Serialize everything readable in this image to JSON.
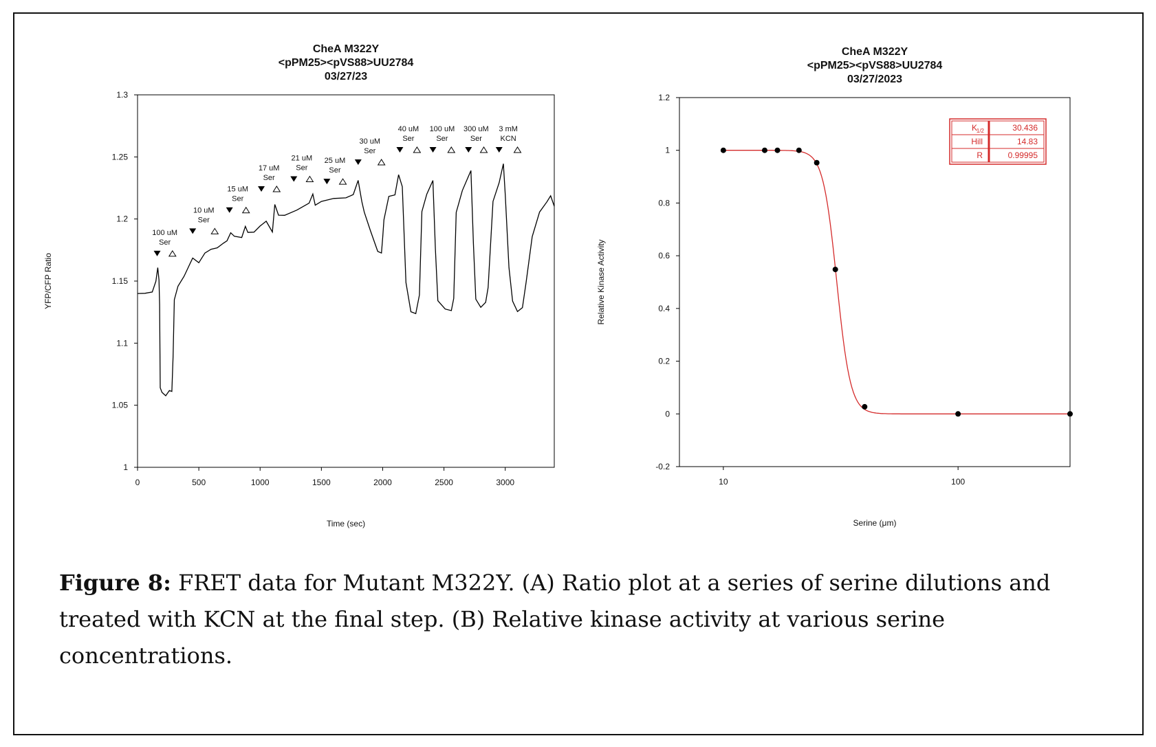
{
  "caption": {
    "label": "Figure 8:",
    "text": " FRET data for Mutant M322Y. (A) Ratio plot at a series of serine dilutions and treated with KCN at the final step. (B) Relative kinase activity at various serine concentrations."
  },
  "chart_data": [
    {
      "type": "line",
      "title": [
        "CheA M322Y",
        "<pPM25><pVS88>UU2784",
        "03/27/23"
      ],
      "xlabel": "Time (sec)",
      "ylabel": "YFP/CFP Ratio",
      "xlim": [
        0,
        3400
      ],
      "ylim": [
        1,
        1.3
      ],
      "xticks": [
        "0",
        "500",
        "1000",
        "1500",
        "2000",
        "2500",
        "3000"
      ],
      "yticks": [
        "1",
        "1.05",
        "1.1",
        "1.15",
        "1.2",
        "1.25",
        "1.3"
      ],
      "color": "#000000",
      "annotations": [
        {
          "label": [
            "100 uM",
            "Ser"
          ],
          "add": 160,
          "remove": 285
        },
        {
          "label": [
            "10 uM",
            "Ser"
          ],
          "add": 450,
          "remove": 630
        },
        {
          "label": [
            "15 uM",
            "Ser"
          ],
          "add": 750,
          "remove": 885
        },
        {
          "label": [
            "17 uM",
            "Ser"
          ],
          "add": 1010,
          "remove": 1135
        },
        {
          "label": [
            "21 uM",
            "Ser"
          ],
          "add": 1275,
          "remove": 1405
        },
        {
          "label": [
            "25 uM",
            "Ser"
          ],
          "add": 1545,
          "remove": 1675
        },
        {
          "label": [
            "30 uM",
            "Ser"
          ],
          "add": 1800,
          "remove": 1990
        },
        {
          "label": [
            "40 uM",
            "Ser"
          ],
          "add": 2140,
          "remove": 2280
        },
        {
          "label": [
            "100 uM",
            "Ser"
          ],
          "add": 2410,
          "remove": 2560
        },
        {
          "label": [
            "300 uM",
            "Ser"
          ],
          "add": 2700,
          "remove": 2825
        },
        {
          "label": [
            "3 mM",
            "KCN"
          ],
          "add": 2950,
          "remove": 3100
        }
      ],
      "series": [
        {
          "values": [
            [
              0,
              1.14
            ],
            [
              60,
              1.139
            ],
            [
              120,
              1.142
            ],
            [
              150,
              1.15
            ],
            [
              165,
              1.16
            ],
            [
              175,
              1.152
            ],
            [
              180,
              1.13
            ],
            [
              185,
              1.065
            ],
            [
              200,
              1.06
            ],
            [
              230,
              1.057
            ],
            [
              260,
              1.063
            ],
            [
              280,
              1.06
            ],
            [
              290,
              1.09
            ],
            [
              300,
              1.135
            ],
            [
              330,
              1.145
            ],
            [
              380,
              1.155
            ],
            [
              420,
              1.162
            ],
            [
              450,
              1.168
            ],
            [
              500,
              1.166
            ],
            [
              550,
              1.172
            ],
            [
              600,
              1.175
            ],
            [
              650,
              1.178
            ],
            [
              700,
              1.18
            ],
            [
              730,
              1.182
            ],
            [
              760,
              1.19
            ],
            [
              790,
              1.185
            ],
            [
              850,
              1.185
            ],
            [
              880,
              1.195
            ],
            [
              900,
              1.188
            ],
            [
              950,
              1.19
            ],
            [
              1000,
              1.195
            ],
            [
              1050,
              1.197
            ],
            [
              1100,
              1.19
            ],
            [
              1120,
              1.212
            ],
            [
              1150,
              1.202
            ],
            [
              1200,
              1.204
            ],
            [
              1300,
              1.208
            ],
            [
              1400,
              1.212
            ],
            [
              1430,
              1.22
            ],
            [
              1450,
              1.212
            ],
            [
              1500,
              1.213
            ],
            [
              1600,
              1.216
            ],
            [
              1700,
              1.218
            ],
            [
              1760,
              1.22
            ],
            [
              1800,
              1.23
            ],
            [
              1830,
              1.215
            ],
            [
              1850,
              1.205
            ],
            [
              1900,
              1.19
            ],
            [
              1960,
              1.175
            ],
            [
              1990,
              1.172
            ],
            [
              2000,
              1.185
            ],
            [
              2010,
              1.2
            ],
            [
              2050,
              1.217
            ],
            [
              2100,
              1.22
            ],
            [
              2130,
              1.236
            ],
            [
              2160,
              1.225
            ],
            [
              2190,
              1.15
            ],
            [
              2230,
              1.125
            ],
            [
              2270,
              1.123
            ],
            [
              2300,
              1.14
            ],
            [
              2320,
              1.205
            ],
            [
              2360,
              1.22
            ],
            [
              2410,
              1.232
            ],
            [
              2430,
              1.175
            ],
            [
              2450,
              1.135
            ],
            [
              2510,
              1.128
            ],
            [
              2560,
              1.125
            ],
            [
              2580,
              1.137
            ],
            [
              2600,
              1.205
            ],
            [
              2650,
              1.222
            ],
            [
              2720,
              1.24
            ],
            [
              2740,
              1.18
            ],
            [
              2760,
              1.135
            ],
            [
              2800,
              1.13
            ],
            [
              2840,
              1.132
            ],
            [
              2860,
              1.145
            ],
            [
              2900,
              1.215
            ],
            [
              2950,
              1.228
            ],
            [
              2985,
              1.245
            ],
            [
              3000,
              1.22
            ],
            [
              3030,
              1.16
            ],
            [
              3060,
              1.135
            ],
            [
              3100,
              1.125
            ],
            [
              3140,
              1.128
            ],
            [
              3170,
              1.15
            ],
            [
              3220,
              1.185
            ],
            [
              3280,
              1.205
            ],
            [
              3340,
              1.215
            ],
            [
              3370,
              1.218
            ],
            [
              3400,
              1.21
            ]
          ]
        }
      ]
    },
    {
      "type": "scatter",
      "title": [
        "CheA M322Y",
        "<pPM25><pVS88>UU2784",
        "03/27/2023"
      ],
      "xlabel": "Serine (μm)",
      "ylabel": "Relative Kinase Activity",
      "xscale": "log",
      "xlim": [
        6.5,
        300
      ],
      "ylim": [
        -0.2,
        1.2
      ],
      "xticks": [
        "10",
        "100"
      ],
      "yticks": [
        "-0.2",
        "0",
        "0.2",
        "0.4",
        "0.6",
        "0.8",
        "1",
        "1.2"
      ],
      "point_color": "#000000",
      "fit_color": "#d42a2a",
      "points": [
        [
          10,
          1
        ],
        [
          15,
          1
        ],
        [
          17,
          1
        ],
        [
          21,
          1
        ],
        [
          25,
          0.953
        ],
        [
          30,
          0.548
        ],
        [
          40,
          0.027
        ],
        [
          100,
          0
        ],
        [
          300,
          0
        ]
      ],
      "fit": {
        "model": "hill",
        "k_half": 30.436,
        "hill": 14.83,
        "r": 0.99995
      },
      "legend_table": {
        "position": "top-right",
        "rows": [
          {
            "key": "K",
            "sub": "1/2",
            "value": "30.436"
          },
          {
            "key": "Hill",
            "value": "14.83"
          },
          {
            "key": "R",
            "value": "0.99995"
          }
        ]
      }
    }
  ]
}
